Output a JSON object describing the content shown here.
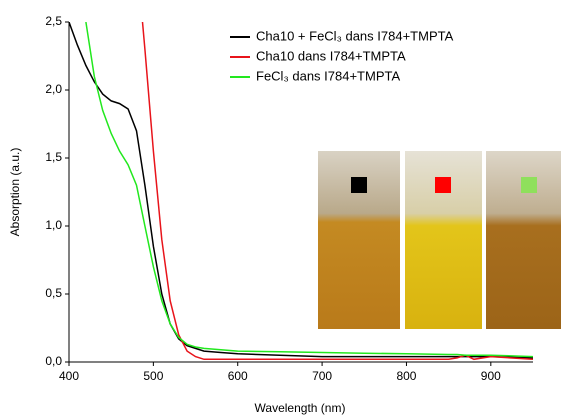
{
  "chart_data": {
    "type": "line",
    "x_label": "Wavelength (nm)",
    "y_label": "Absorption (a.u.)",
    "x": [
      400,
      410,
      420,
      430,
      440,
      450,
      460,
      470,
      480,
      490,
      500,
      510,
      520,
      530,
      540,
      550,
      560,
      580,
      600,
      650,
      700,
      750,
      800,
      850,
      860,
      870,
      880,
      900,
      950
    ],
    "series": [
      {
        "name": "Cha10 + FeCl₃ dans I784+TMPTA",
        "color": "#000000",
        "values": [
          2.5,
          2.33,
          2.18,
          2.06,
          1.97,
          1.92,
          1.9,
          1.86,
          1.7,
          1.3,
          0.85,
          0.5,
          0.28,
          0.17,
          0.12,
          0.1,
          0.08,
          0.07,
          0.06,
          0.05,
          0.04,
          0.04,
          0.04,
          0.04,
          0.04,
          0.04,
          0.04,
          0.04,
          0.03
        ]
      },
      {
        "name": "Cha10 dans I784+TMPTA",
        "color": "#e8141b",
        "values": [
          null,
          null,
          null,
          null,
          null,
          null,
          null,
          null,
          3.0,
          2.3,
          1.55,
          0.9,
          0.45,
          0.2,
          0.08,
          0.04,
          0.02,
          0.02,
          0.02,
          0.02,
          0.02,
          0.02,
          0.02,
          0.02,
          0.03,
          0.05,
          0.02,
          0.04,
          0.02
        ]
      },
      {
        "name": "FeCl₃ dans I784+TMPTA",
        "color": "#22e81e",
        "values": [
          null,
          null,
          2.5,
          2.1,
          1.85,
          1.68,
          1.55,
          1.45,
          1.3,
          1.0,
          0.7,
          0.45,
          0.28,
          0.18,
          0.13,
          0.11,
          0.1,
          0.09,
          0.08,
          0.075,
          0.07,
          0.065,
          0.06,
          0.055,
          0.055,
          0.05,
          0.05,
          0.05,
          0.04
        ]
      }
    ],
    "xlim": [
      400,
      950
    ],
    "xticks": [
      400,
      500,
      600,
      700,
      800,
      900
    ],
    "ylim": [
      0,
      2.5
    ],
    "yticks": [
      {
        "value": 0,
        "label": "0,0"
      },
      {
        "value": 0.5,
        "label": "0,5"
      },
      {
        "value": 1,
        "label": "1,0"
      },
      {
        "value": 1.5,
        "label": "1,5"
      },
      {
        "value": 2,
        "label": "2,0"
      },
      {
        "value": 2.5,
        "label": "2,5"
      }
    ]
  }
}
